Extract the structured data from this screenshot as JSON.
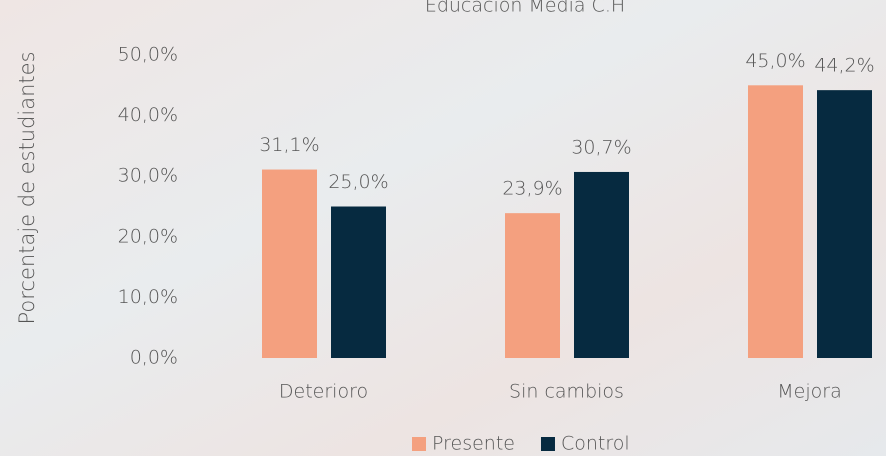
{
  "chart_data": {
    "type": "bar",
    "title": "Educación Media C.H",
    "y_label": "Porcentaje de estudiantes",
    "categories": [
      "Deterioro",
      "Sin cambios",
      "Mejora"
    ],
    "series": [
      {
        "name": "Presente",
        "color": "#f4a07f",
        "values": [
          31.1,
          23.9,
          45.0
        ],
        "value_labels": [
          "31,1%",
          "23,9%",
          "45,0%"
        ]
      },
      {
        "name": "Control",
        "color": "#062a40",
        "values": [
          25.0,
          30.7,
          44.2
        ],
        "value_labels": [
          "25,0%",
          "30,7%",
          "44,2%"
        ]
      }
    ],
    "ylim": [
      0,
      50
    ],
    "yticks": [
      {
        "value": 0,
        "label": "0,0%"
      },
      {
        "value": 10,
        "label": "10,0%"
      },
      {
        "value": 20,
        "label": "20,0%"
      },
      {
        "value": 30,
        "label": "30,0%"
      },
      {
        "value": 40,
        "label": "40,0%"
      },
      {
        "value": 50,
        "label": "50,0%"
      }
    ],
    "grid": false,
    "legend": "bottom"
  }
}
